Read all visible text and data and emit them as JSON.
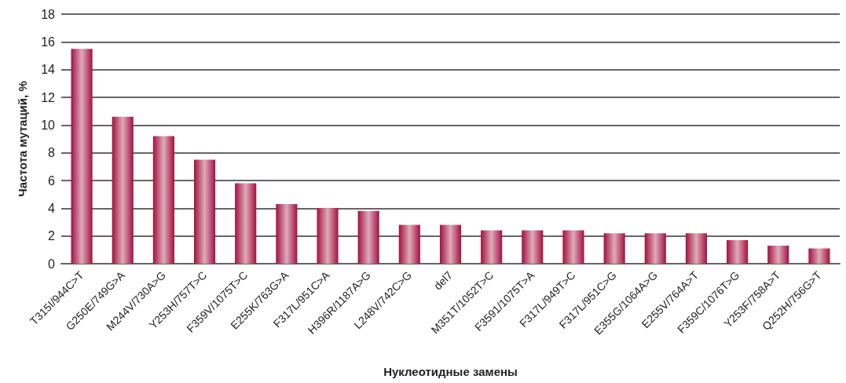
{
  "chart_data": {
    "type": "bar",
    "xlabel": "Нуклеотидные замены",
    "ylabel": "Частота мутаций, %",
    "categories": [
      "T315I/944C>T",
      "G250E/749G>A",
      "M244V/730A>G",
      "Y253H/757T>C",
      "F359V/1075T>C",
      "E255K/763G>A",
      "F317L/951C>A",
      "H396R/1187A>G",
      "L248V/742C>G",
      "del7",
      "M351T/1052T>C",
      "F3591/1075T>A",
      "F317L/949T>C",
      "F317L/951C>G",
      "E355G/1064A>G",
      "E255V/764A>T",
      "F359C/1076T>G",
      "Y253F/758A>T",
      "Q252H/756G>T"
    ],
    "values": [
      15.5,
      10.6,
      9.2,
      7.5,
      5.8,
      4.3,
      4.0,
      3.8,
      2.8,
      2.8,
      2.4,
      2.4,
      2.4,
      2.2,
      2.2,
      2.2,
      1.7,
      1.3,
      1.1
    ],
    "color": "#a3103f",
    "ylim": [
      0,
      18
    ],
    "yticks": [
      0,
      2,
      4,
      6,
      8,
      10,
      12,
      14,
      16,
      18
    ],
    "grid": "y"
  }
}
